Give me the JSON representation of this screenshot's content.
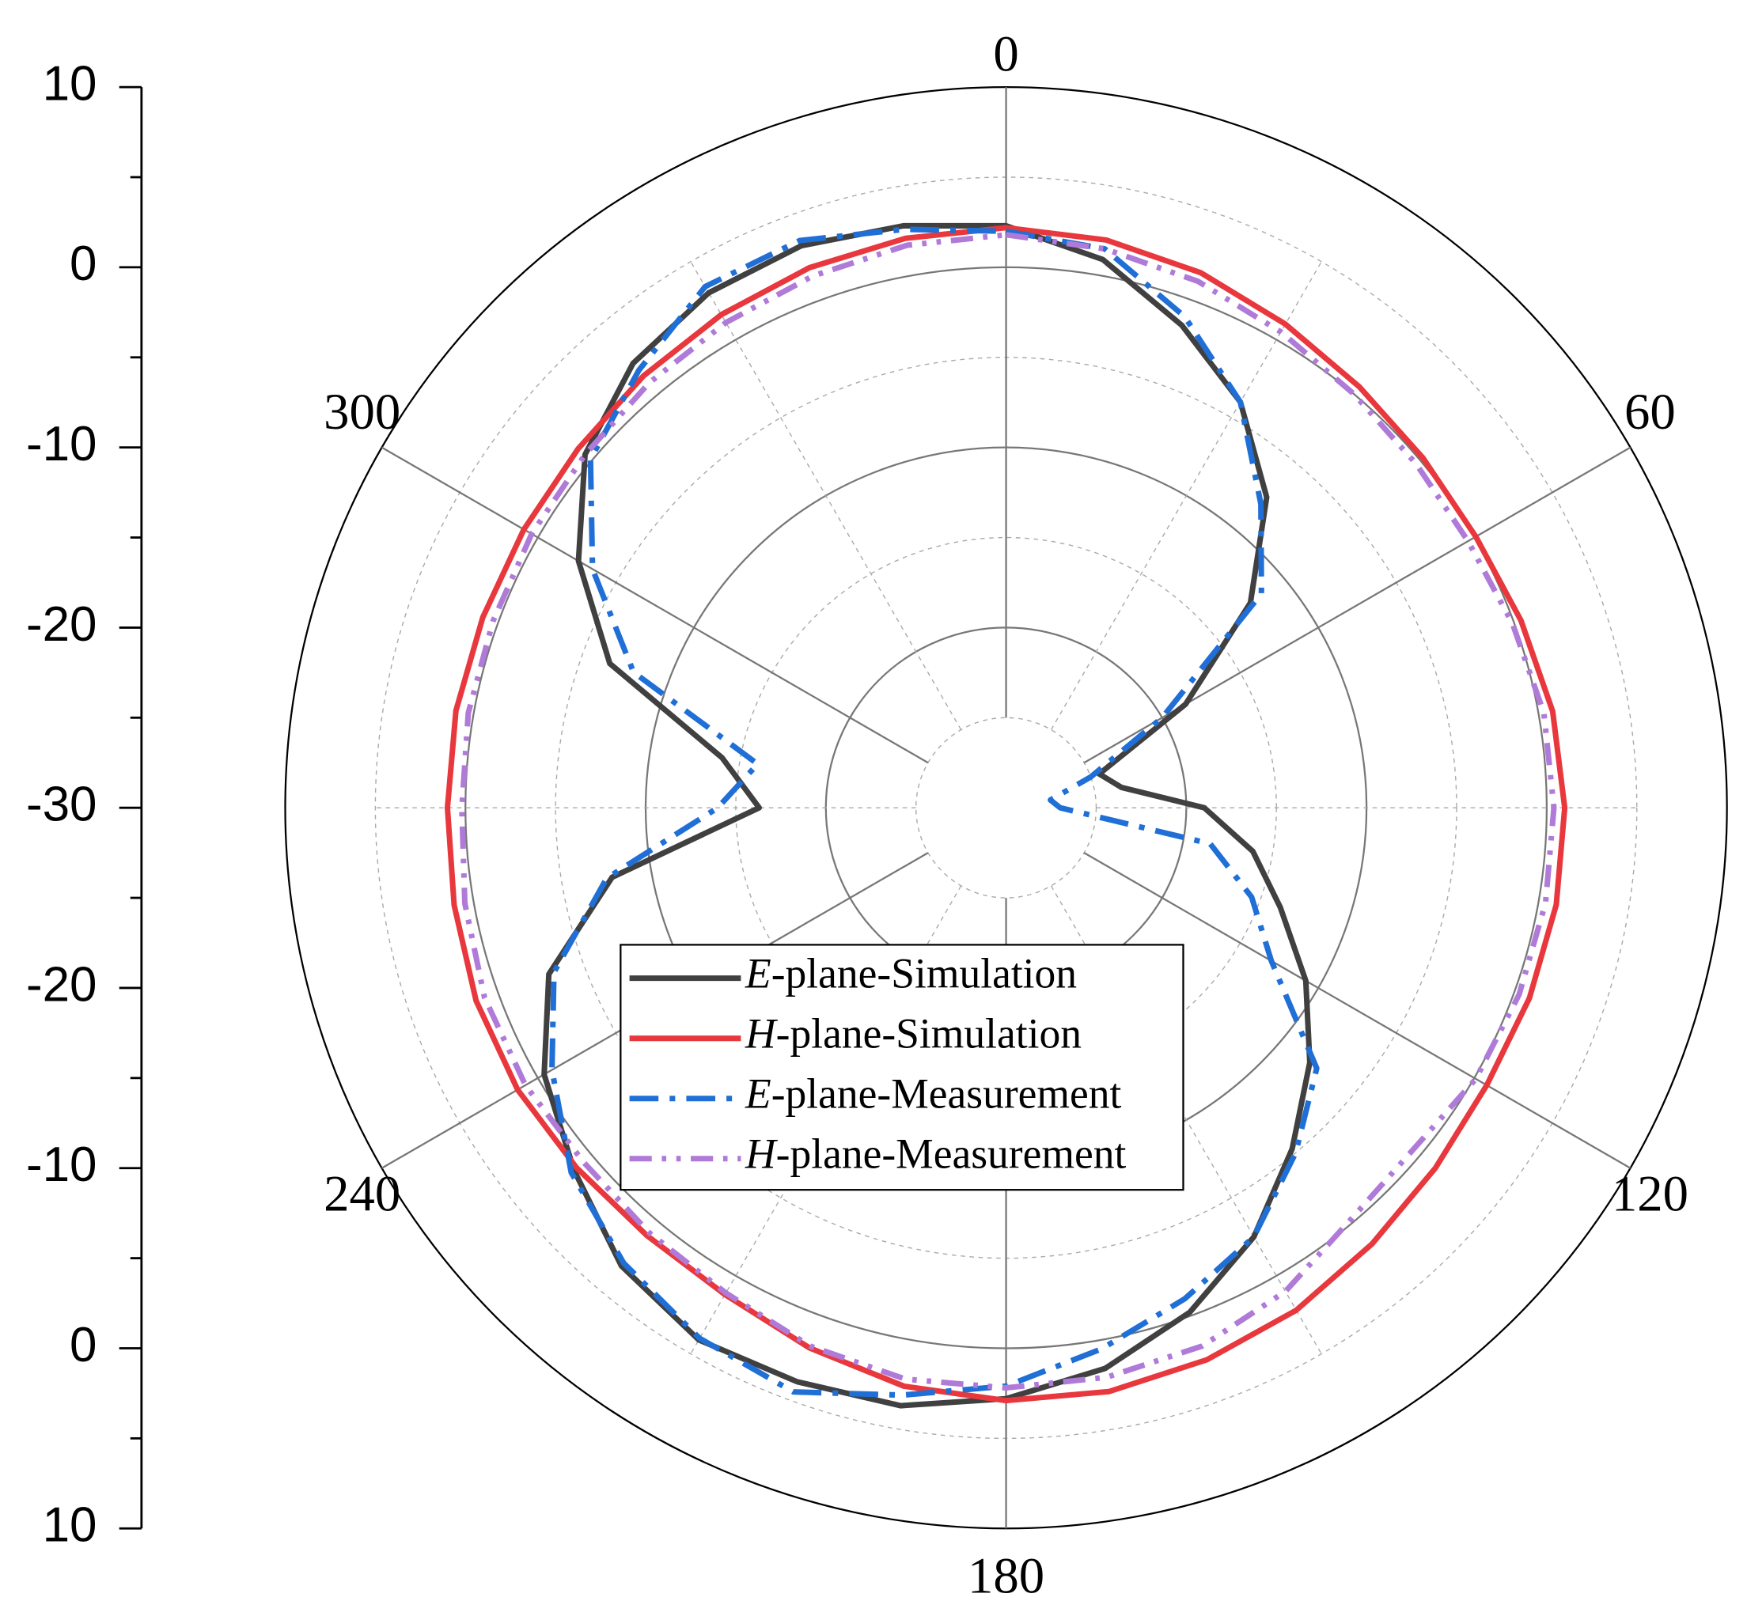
{
  "chart_data": {
    "type": "polar",
    "theta": [
      0,
      10,
      20,
      30,
      40,
      50,
      60,
      70,
      80,
      90,
      100,
      110,
      120,
      130,
      140,
      150,
      160,
      170,
      180,
      190,
      200,
      210,
      220,
      230,
      240,
      250,
      260,
      270,
      280,
      290,
      300,
      310,
      320,
      330,
      340,
      350
    ],
    "rlim": [
      -30,
      10
    ],
    "rticks": [
      -30,
      -20,
      -10,
      0,
      10
    ],
    "thetaticks": [
      0,
      60,
      120,
      180,
      240,
      300
    ],
    "grid": true,
    "legend": "center",
    "series": [
      {
        "name": "E-plane-Simulation",
        "color": "#404040",
        "dash": "solid",
        "values": [
          2.3,
          0.9,
          -1.5,
          -4.0,
          -7.5,
          -12.3,
          -18.5,
          -24.5,
          -23.5,
          -19.0,
          -16.1,
          -13.8,
          -10.8,
          -8.0,
          -5.3,
          -2.5,
          -0.2,
          1.6,
          2.8,
          3.7,
          3.9,
          4.1,
          3.2,
          1.3,
          -0.4,
          -3.0,
          -7.8,
          -16.3,
          -14.0,
          -6.6,
          -2.6,
          0.5,
          2.2,
          3.0,
          3.2,
          2.8
        ]
      },
      {
        "name": "H-plane-Simulation",
        "color": "#e8383d",
        "dash": "solid",
        "values": [
          2.2,
          2.0,
          1.6,
          1.0,
          0.5,
          0.2,
          0.1,
          0.4,
          0.8,
          1.0,
          1.0,
          0.9,
          0.8,
          1.1,
          1.6,
          2.2,
          2.6,
          2.9,
          2.9,
          2.6,
          1.9,
          1.2,
          1.0,
          1.1,
          1.3,
          1.3,
          1.1,
          1.0,
          1.0,
          0.9,
          0.9,
          1.0,
          1.3,
          1.6,
          1.9,
          2.1
        ]
      },
      {
        "name": "E-plane-Measurement",
        "color": "#1f6fd6",
        "dash": "dashdot",
        "values": [
          2.0,
          1.5,
          -1.0,
          -4.0,
          -8.0,
          -11.5,
          -20.0,
          -25.0,
          -27.5,
          -27.0,
          -18.5,
          -15.5,
          -13.0,
          -7.5,
          -5.0,
          -2.5,
          -1.0,
          0.5,
          2.1,
          3.1,
          4.5,
          4.0,
          3.0,
          1.5,
          -0.9,
          -3.3,
          -7.5,
          -14.0,
          -16.0,
          -8.0,
          -3.5,
          0.1,
          1.7,
          3.4,
          3.5,
          2.6
        ]
      },
      {
        "name": "H-plane-Measurement",
        "color": "#b07ad8",
        "dash": "dashdotdot",
        "values": [
          1.8,
          1.5,
          1.1,
          0.5,
          0.0,
          -0.3,
          -0.4,
          -0.1,
          0.3,
          0.4,
          0.4,
          0.3,
          0.1,
          -0.5,
          -0.2,
          1.0,
          1.8,
          2.1,
          2.2,
          2.2,
          1.8,
          1.1,
          0.8,
          0.6,
          0.8,
          0.8,
          0.5,
          0.2,
          0.3,
          0.3,
          0.4,
          0.5,
          0.8,
          1.1,
          1.4,
          1.7
        ]
      }
    ]
  }
}
